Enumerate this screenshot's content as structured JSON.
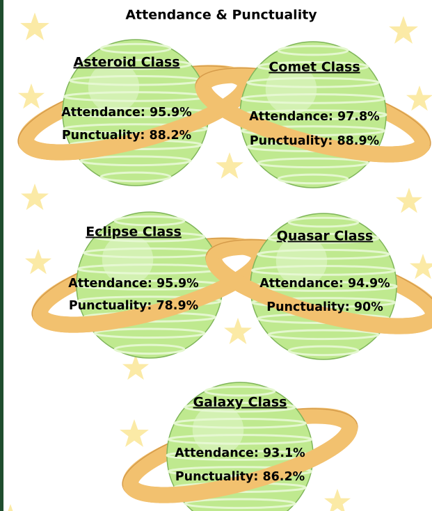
{
  "header": {
    "title": "Attendance & Punctuality"
  },
  "classes": [
    {
      "name": "Asteroid Class",
      "attendance": "Attendance: 95.9%",
      "punctuality": "Punctuality: 88.2%"
    },
    {
      "name": "Comet Class",
      "attendance": "Attendance: 97.8%",
      "punctuality": "Punctuality: 88.9%"
    },
    {
      "name": "Eclipse Class",
      "attendance": "Attendance: 95.9%",
      "punctuality": "Punctuality: 78.9%"
    },
    {
      "name": "Quasar Class",
      "attendance": "Attendance: 94.9%",
      "punctuality": "Punctuality: 90%"
    },
    {
      "name": "Galaxy Class",
      "attendance": "Attendance: 93.1%",
      "punctuality": "Punctuality: 86.2%"
    }
  ]
}
